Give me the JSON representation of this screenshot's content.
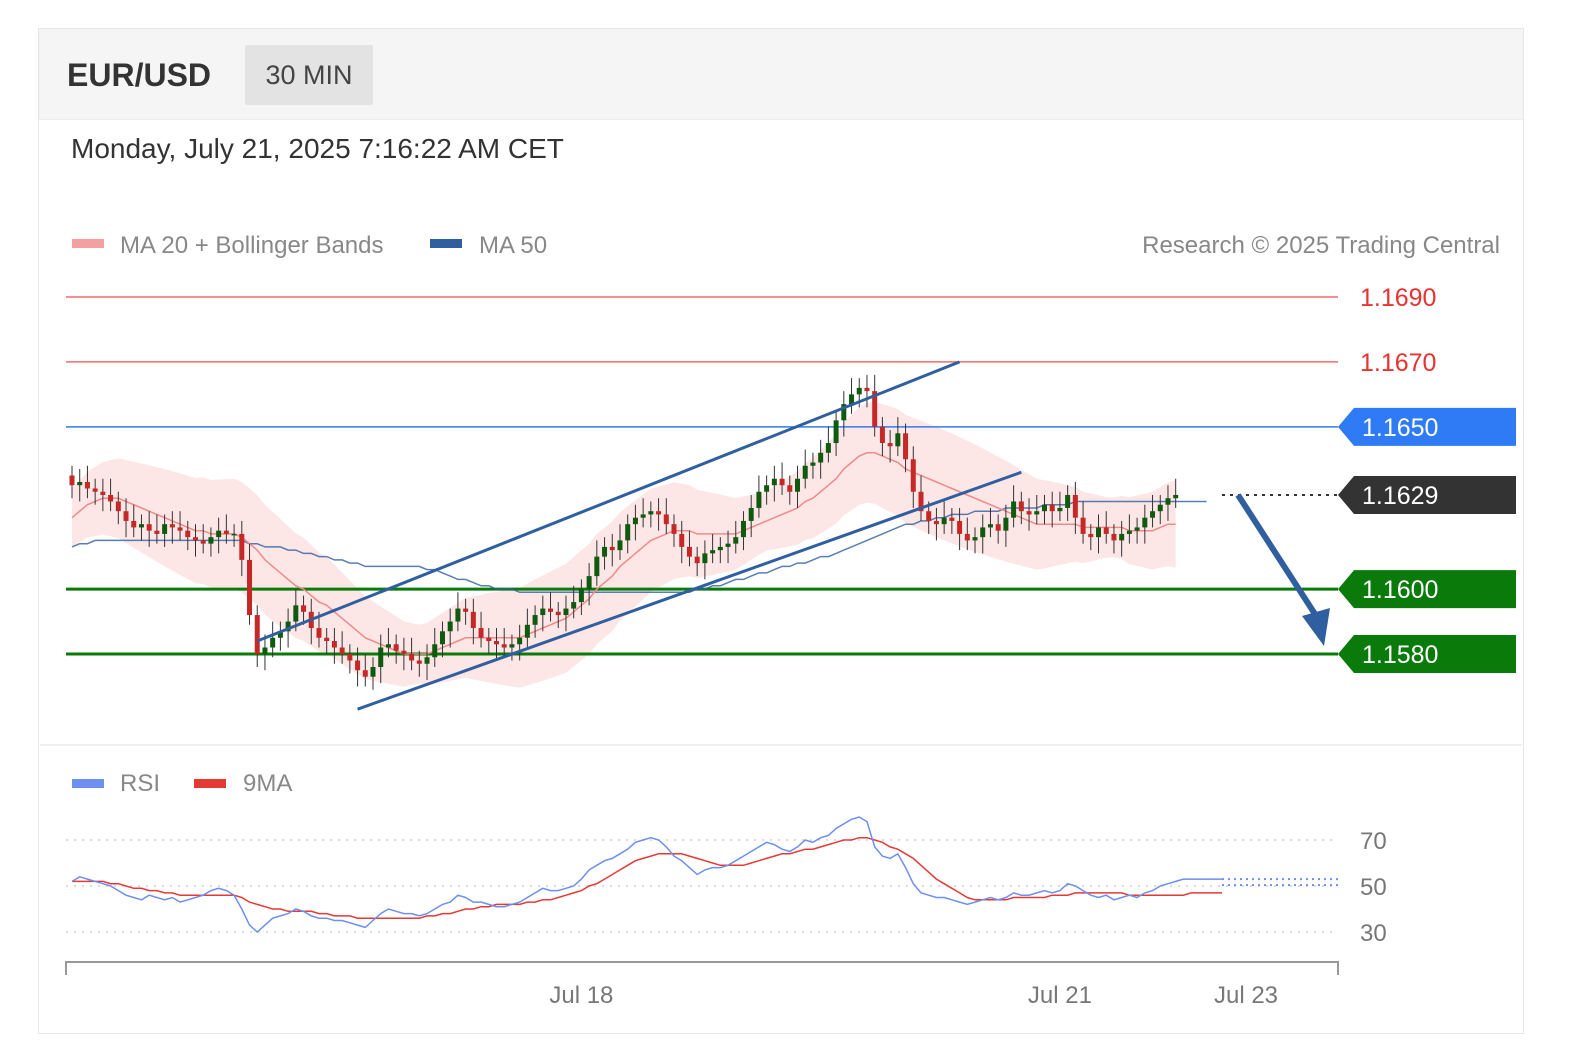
{
  "header": {
    "symbol": "EUR/USD",
    "interval": "30 MIN"
  },
  "datetime": "Monday, July 21, 2025 7:16:22 AM CET",
  "legend": {
    "ma20_label": "MA 20 + Bollinger Bands",
    "ma50_label": "MA 50",
    "credit": "Research © 2025 Trading Central",
    "rsi_label": "RSI",
    "rsi_ma_label": "9MA"
  },
  "colors": {
    "ma20": "#f08a8a",
    "ma50": "#2f5f9f",
    "band": "#fde2e2",
    "resistance": "#f26b6b",
    "pivot": "#2f7bf5",
    "support": "#0a7a0a",
    "current": "#333333",
    "rsi": "#6d8ff0",
    "rsi_ma": "#e53935",
    "bull": "#0f5a0f",
    "bear": "#c62828"
  },
  "chart_data": [
    {
      "type": "line",
      "title": "",
      "price_range": [
        1.1553,
        1.1702
      ],
      "levels": [
        {
          "label": "1.1690",
          "value": 1.169,
          "kind": "resistance"
        },
        {
          "label": "1.1670",
          "value": 1.167,
          "kind": "resistance"
        },
        {
          "label": "1.1650",
          "value": 1.165,
          "kind": "pivot"
        },
        {
          "label": "1.1629",
          "value": 1.1629,
          "kind": "current"
        },
        {
          "label": "1.1600",
          "value": 1.16,
          "kind": "support"
        },
        {
          "label": "1.1580",
          "value": 1.158,
          "kind": "support"
        }
      ],
      "x_ticks": [
        {
          "label": "Jul 18",
          "index": 66
        },
        {
          "label": "Jul 21",
          "index": 128
        },
        {
          "label": "Jul 23",
          "index": 149
        }
      ],
      "candle_count": 150,
      "close": [
        1.1632,
        1.1633,
        1.1631,
        1.163,
        1.1629,
        1.1627,
        1.1624,
        1.1621,
        1.1619,
        1.162,
        1.1618,
        1.1617,
        1.162,
        1.1619,
        1.1618,
        1.1616,
        1.1615,
        1.1614,
        1.1616,
        1.1618,
        1.1617,
        1.1617,
        1.1609,
        1.1592,
        1.158,
        1.1582,
        1.1585,
        1.1587,
        1.159,
        1.1595,
        1.1593,
        1.1588,
        1.1585,
        1.1584,
        1.1582,
        1.158,
        1.1578,
        1.1575,
        1.1573,
        1.1576,
        1.1582,
        1.1583,
        1.1581,
        1.158,
        1.1578,
        1.1577,
        1.1579,
        1.1583,
        1.1587,
        1.159,
        1.1594,
        1.1593,
        1.1588,
        1.1585,
        1.1584,
        1.1583,
        1.1582,
        1.1583,
        1.1585,
        1.1589,
        1.1592,
        1.1594,
        1.1593,
        1.1592,
        1.1594,
        1.1596,
        1.16,
        1.1604,
        1.161,
        1.1613,
        1.1612,
        1.1615,
        1.162,
        1.1622,
        1.1623,
        1.1624,
        1.1623,
        1.162,
        1.1617,
        1.1613,
        1.161,
        1.1608,
        1.1611,
        1.1612,
        1.1613,
        1.1614,
        1.1616,
        1.1621,
        1.1625,
        1.163,
        1.1632,
        1.1634,
        1.1632,
        1.163,
        1.1634,
        1.1638,
        1.1639,
        1.1642,
        1.1645,
        1.1652,
        1.1657,
        1.166,
        1.1662,
        1.1661,
        1.165,
        1.1645,
        1.1644,
        1.1648,
        1.164,
        1.163,
        1.1624,
        1.1621,
        1.162,
        1.1622,
        1.1621,
        1.1617,
        1.1615,
        1.1616,
        1.1619,
        1.162,
        1.1618,
        1.1622,
        1.1627,
        1.1624,
        1.1623,
        1.1624,
        1.1626,
        1.1624,
        1.1625,
        1.1629,
        1.1622,
        1.1617,
        1.1616,
        1.1619,
        1.1617,
        1.1615,
        1.1617,
        1.1618,
        1.1619,
        1.1622,
        1.1624,
        1.1626,
        1.1628,
        1.1629
      ],
      "ma20": [
        1.1622,
        1.1624,
        1.1626,
        1.1627,
        1.1628,
        1.1628,
        1.1628,
        1.1627,
        1.1626,
        1.1625,
        1.1624,
        1.1623,
        1.1622,
        1.1621,
        1.162,
        1.1619,
        1.1618,
        1.1618,
        1.1617,
        1.1617,
        1.1617,
        1.1617,
        1.1616,
        1.1614,
        1.1612,
        1.1609,
        1.1607,
        1.1605,
        1.1603,
        1.1601,
        1.16,
        1.1598,
        1.1596,
        1.1595,
        1.1593,
        1.1591,
        1.1589,
        1.1587,
        1.1585,
        1.1584,
        1.1583,
        1.1582,
        1.1581,
        1.158,
        1.158,
        1.158,
        1.158,
        1.1581,
        1.1582,
        1.1583,
        1.1584,
        1.1585,
        1.1585,
        1.1585,
        1.1585,
        1.1585,
        1.1585,
        1.1585,
        1.1585,
        1.1586,
        1.1587,
        1.1588,
        1.1589,
        1.159,
        1.1591,
        1.1593,
        1.1595,
        1.1597,
        1.16,
        1.1602,
        1.1604,
        1.1607,
        1.1609,
        1.1611,
        1.1613,
        1.1615,
        1.1616,
        1.1617,
        1.1618,
        1.1618,
        1.1618,
        1.1617,
        1.1617,
        1.1617,
        1.1617,
        1.1617,
        1.1617,
        1.1618,
        1.1619,
        1.162,
        1.1621,
        1.1622,
        1.1623,
        1.1624,
        1.1625,
        1.1627,
        1.1628,
        1.163,
        1.1632,
        1.1634,
        1.1637,
        1.1639,
        1.1641,
        1.1642,
        1.1642,
        1.1641,
        1.164,
        1.1639,
        1.1637,
        1.1636,
        1.1635,
        1.1634,
        1.1633,
        1.1632,
        1.1631,
        1.163,
        1.1629,
        1.1628,
        1.1627,
        1.1626,
        1.1625,
        1.1624,
        1.1623,
        1.1622,
        1.1621,
        1.162,
        1.162,
        1.162,
        1.162,
        1.162,
        1.162,
        1.1619,
        1.1619,
        1.1619,
        1.1619,
        1.1619,
        1.1619,
        1.1618,
        1.1618,
        1.1618,
        1.1618,
        1.1619,
        1.162,
        1.162
      ],
      "ma50": [
        1.1613,
        1.1614,
        1.1614,
        1.1615,
        1.1615,
        1.1615,
        1.1615,
        1.1615,
        1.1615,
        1.1615,
        1.1615,
        1.1615,
        1.1615,
        1.1615,
        1.1615,
        1.1615,
        1.1615,
        1.1615,
        1.1615,
        1.1615,
        1.1615,
        1.1615,
        1.1615,
        1.1614,
        1.1614,
        1.1613,
        1.1613,
        1.1613,
        1.1612,
        1.1612,
        1.1611,
        1.1611,
        1.161,
        1.161,
        1.1609,
        1.1609,
        1.1608,
        1.1608,
        1.1607,
        1.1607,
        1.1607,
        1.1607,
        1.1607,
        1.1607,
        1.1607,
        1.1607,
        1.1606,
        1.1606,
        1.1605,
        1.1604,
        1.1603,
        1.1603,
        1.1602,
        1.1601,
        1.1601,
        1.16,
        1.16,
        1.16,
        1.1599,
        1.1599,
        1.1599,
        1.1599,
        1.1599,
        1.1599,
        1.1599,
        1.1599,
        1.1599,
        1.1599,
        1.1599,
        1.1599,
        1.1599,
        1.1599,
        1.1599,
        1.1599,
        1.1599,
        1.1599,
        1.1599,
        1.1599,
        1.1599,
        1.1599,
        1.1599,
        1.16,
        1.16,
        1.1601,
        1.1601,
        1.1602,
        1.1603,
        1.1603,
        1.1604,
        1.1605,
        1.1605,
        1.1606,
        1.1607,
        1.1607,
        1.1608,
        1.1608,
        1.1609,
        1.161,
        1.161,
        1.1611,
        1.1612,
        1.1613,
        1.1614,
        1.1615,
        1.1616,
        1.1617,
        1.1618,
        1.1619,
        1.162,
        1.162,
        1.1621,
        1.1621,
        1.1622,
        1.1622,
        1.1623,
        1.1623,
        1.1623,
        1.1624,
        1.1624,
        1.1624,
        1.1624,
        1.1625,
        1.1625,
        1.1625,
        1.1625,
        1.1625,
        1.1626,
        1.1626,
        1.1626,
        1.1626,
        1.1627,
        1.1627,
        1.1627,
        1.1627,
        1.1627,
        1.1627,
        1.1627,
        1.1627,
        1.1627,
        1.1627,
        1.1627,
        1.1627,
        1.1627,
        1.1627,
        1.1627,
        1.1627,
        1.1627,
        1.1627
      ],
      "projection": {
        "from": 1.1629,
        "to": 1.158
      }
    },
    {
      "type": "line",
      "title": "",
      "y_range": [
        20,
        85
      ],
      "y_ticks": [
        70,
        50,
        30
      ],
      "series": [
        {
          "name": "RSI",
          "values": [
            52,
            54,
            53,
            52,
            51,
            50,
            48,
            46,
            45,
            44,
            46,
            45,
            44,
            45,
            43,
            44,
            45,
            46,
            48,
            49,
            48,
            46,
            40,
            33,
            30,
            33,
            36,
            37,
            38,
            40,
            39,
            37,
            36,
            36,
            35,
            35,
            34,
            33,
            32,
            35,
            38,
            40,
            39,
            38,
            38,
            37,
            38,
            40,
            42,
            43,
            46,
            45,
            43,
            43,
            42,
            41,
            41,
            42,
            43,
            45,
            47,
            49,
            48,
            48,
            49,
            50,
            53,
            57,
            59,
            61,
            62,
            64,
            66,
            69,
            70,
            71,
            70,
            67,
            63,
            61,
            58,
            55,
            57,
            58,
            58,
            59,
            61,
            63,
            65,
            67,
            69,
            68,
            66,
            65,
            67,
            70,
            69,
            71,
            72,
            75,
            77,
            79,
            80,
            78,
            67,
            63,
            62,
            64,
            58,
            51,
            47,
            46,
            45,
            45,
            44,
            43,
            42,
            43,
            44,
            45,
            44,
            45,
            47,
            46,
            46,
            47,
            48,
            47,
            48,
            51,
            50,
            48,
            46,
            45,
            46,
            44,
            45,
            46,
            45,
            47,
            48,
            50,
            51,
            52,
            53,
            53,
            53,
            53,
            53,
            53
          ]
        },
        {
          "name": "9MA",
          "values": [
            52,
            52,
            52,
            52,
            52,
            51,
            51,
            50,
            49,
            49,
            48,
            48,
            47,
            47,
            46,
            46,
            46,
            46,
            46,
            46,
            46,
            46,
            45,
            43,
            42,
            41,
            40,
            40,
            39,
            39,
            39,
            39,
            38,
            38,
            37,
            37,
            37,
            36,
            36,
            36,
            36,
            36,
            36,
            36,
            36,
            36,
            37,
            37,
            38,
            38,
            39,
            40,
            40,
            41,
            41,
            42,
            42,
            42,
            42,
            43,
            43,
            44,
            44,
            45,
            46,
            47,
            48,
            50,
            51,
            53,
            55,
            57,
            59,
            61,
            62,
            63,
            64,
            64,
            64,
            64,
            63,
            62,
            61,
            60,
            59,
            59,
            59,
            59,
            60,
            61,
            62,
            63,
            64,
            64,
            65,
            66,
            66,
            67,
            68,
            69,
            70,
            70,
            71,
            71,
            70,
            69,
            67,
            66,
            64,
            62,
            59,
            56,
            53,
            51,
            49,
            47,
            45,
            44,
            44,
            44,
            44,
            44,
            45,
            45,
            45,
            45,
            45,
            46,
            46,
            46,
            47,
            47,
            47,
            47,
            47,
            47,
            47,
            46,
            46,
            46,
            46,
            46,
            46,
            46,
            46,
            47,
            47,
            47,
            47,
            47
          ]
        }
      ]
    }
  ]
}
